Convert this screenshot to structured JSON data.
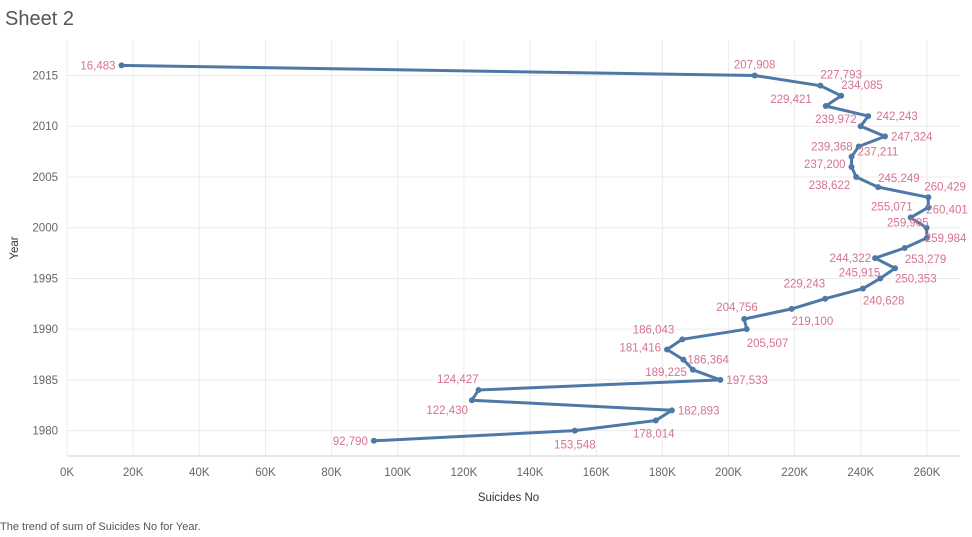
{
  "sheet": {
    "title": "Sheet 2"
  },
  "caption": "The trend of sum of Suicides No for Year.",
  "chart_data": {
    "type": "line",
    "orientation": "vertical-year-axis",
    "xlabel": "Suicides No",
    "ylabel": "Year",
    "xlim": [
      0,
      270000
    ],
    "ylim": [
      1977.5,
      2018.5
    ],
    "x_ticks": [
      0,
      20000,
      40000,
      60000,
      80000,
      100000,
      120000,
      140000,
      160000,
      180000,
      200000,
      220000,
      240000,
      260000
    ],
    "x_tick_labels": [
      "0K",
      "20K",
      "40K",
      "60K",
      "80K",
      "100K",
      "120K",
      "140K",
      "160K",
      "180K",
      "200K",
      "220K",
      "240K",
      "260K"
    ],
    "y_ticks": [
      1980,
      1985,
      1990,
      1995,
      2000,
      2005,
      2010,
      2015
    ],
    "y_tick_labels": [
      "1980",
      "1985",
      "1990",
      "1995",
      "2000",
      "2005",
      "2010",
      "2015"
    ],
    "grid": true,
    "line_color": "#4e79a7",
    "label_color": "#d4738f",
    "series": [
      {
        "points": [
          {
            "year": 1979,
            "value": 92790,
            "label": "92,790"
          },
          {
            "year": 1980,
            "value": 153548,
            "label": "153,548"
          },
          {
            "year": 1981,
            "value": 178014,
            "label": "178,014"
          },
          {
            "year": 1982,
            "value": 182893,
            "label": "182,893"
          },
          {
            "year": 1983,
            "value": 122430,
            "label": "122,430"
          },
          {
            "year": 1984,
            "value": 124427,
            "label": "124,427"
          },
          {
            "year": 1985,
            "value": 197533,
            "label": "197,533"
          },
          {
            "year": 1986,
            "value": 189225,
            "label": "189,225"
          },
          {
            "year": 1987,
            "value": 186364,
            "label": "186,364"
          },
          {
            "year": 1988,
            "value": 181416,
            "label": "181,416"
          },
          {
            "year": 1989,
            "value": 186043,
            "label": "186,043"
          },
          {
            "year": 1990,
            "value": 205507,
            "label": "205,507"
          },
          {
            "year": 1991,
            "value": 204756,
            "label": "204,756"
          },
          {
            "year": 1992,
            "value": 219100,
            "label": "219,100"
          },
          {
            "year": 1993,
            "value": 229243,
            "label": "229,243"
          },
          {
            "year": 1994,
            "value": 240628,
            "label": "240,628"
          },
          {
            "year": 1995,
            "value": 245915,
            "label": "245,915"
          },
          {
            "year": 1996,
            "value": 250353,
            "label": "250,353"
          },
          {
            "year": 1997,
            "value": 244322,
            "label": "244,322"
          },
          {
            "year": 1998,
            "value": 253279,
            "label": "253,279"
          },
          {
            "year": 1999,
            "value": 259984,
            "label": "259,984"
          },
          {
            "year": 2000,
            "value": 259905,
            "label": "259,905"
          },
          {
            "year": 2001,
            "value": 255071,
            "label": "255,071"
          },
          {
            "year": 2002,
            "value": 260401,
            "label": "260,401"
          },
          {
            "year": 2003,
            "value": 260429,
            "label": "260,429"
          },
          {
            "year": 2004,
            "value": 245249,
            "label": "245,249"
          },
          {
            "year": 2005,
            "value": 238622,
            "label": "238,622"
          },
          {
            "year": 2006,
            "value": 237200,
            "label": "237,200"
          },
          {
            "year": 2007,
            "value": 237211,
            "label": "237,211"
          },
          {
            "year": 2008,
            "value": 239368,
            "label": "239,368"
          },
          {
            "year": 2009,
            "value": 247324,
            "label": "247,324"
          },
          {
            "year": 2010,
            "value": 239972,
            "label": "239,972"
          },
          {
            "year": 2011,
            "value": 242243,
            "label": "242,243"
          },
          {
            "year": 2012,
            "value": 229421,
            "label": "229,421"
          },
          {
            "year": 2013,
            "value": 234085,
            "label": "234,085"
          },
          {
            "year": 2014,
            "value": 227793,
            "label": "227,793"
          },
          {
            "year": 2015,
            "value": 207908,
            "label": "207,908"
          },
          {
            "year": 2016,
            "value": 16483,
            "label": "16,483"
          }
        ]
      }
    ]
  }
}
